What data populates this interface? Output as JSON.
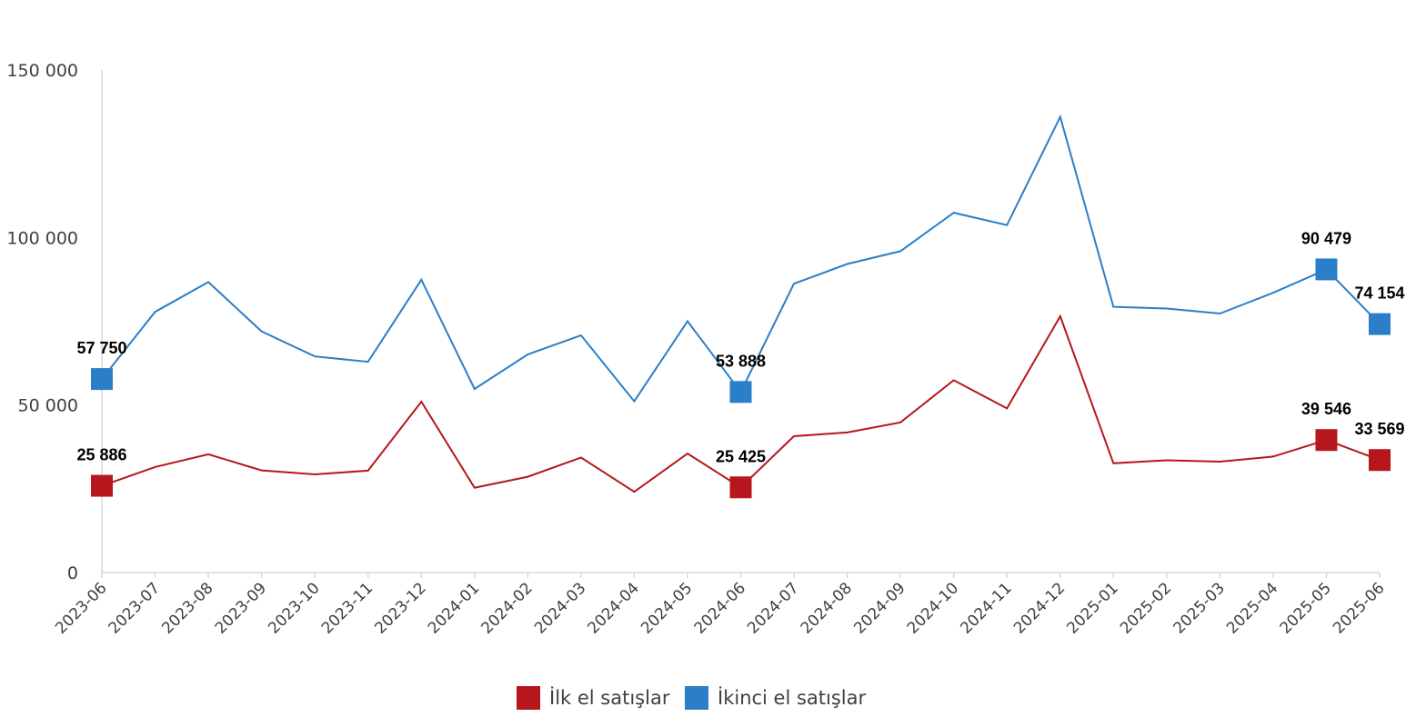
{
  "chart_data": {
    "type": "line",
    "title": "",
    "xlabel": "",
    "ylabel": "",
    "ylim": [
      0,
      150000
    ],
    "yticks": [
      0,
      50000,
      100000,
      150000
    ],
    "ytick_labels": [
      "0",
      "50 000",
      "100 000",
      "150 000"
    ],
    "grid": false,
    "legend_position": "bottom-center",
    "categories": [
      "2023-06",
      "2023-07",
      "2023-08",
      "2023-09",
      "2023-10",
      "2023-11",
      "2023-12",
      "2024-01",
      "2024-02",
      "2024-03",
      "2024-04",
      "2024-05",
      "2024-06",
      "2024-07",
      "2024-08",
      "2024-09",
      "2024-10",
      "2024-11",
      "2024-12",
      "2025-01",
      "2025-02",
      "2025-03",
      "2025-04",
      "2025-05",
      "2025-06"
    ],
    "series": [
      {
        "name": "İlk el satışlar",
        "color": "#B5171C",
        "values": [
          25886,
          31500,
          35300,
          30500,
          29300,
          30400,
          51000,
          25300,
          28600,
          34300,
          24100,
          35500,
          25425,
          40700,
          41800,
          44800,
          57400,
          49000,
          76500,
          32600,
          33500,
          33100,
          34600,
          39546,
          33569
        ],
        "labeled_points": [
          {
            "index": 0,
            "label": "25 886"
          },
          {
            "index": 12,
            "label": "25 425"
          },
          {
            "index": 23,
            "label": "39 546"
          },
          {
            "index": 24,
            "label": "33 569"
          }
        ]
      },
      {
        "name": "İkinci el satışlar",
        "color": "#2A7FC8",
        "values": [
          57750,
          77800,
          86700,
          72000,
          64500,
          62900,
          87400,
          54800,
          65100,
          70800,
          51100,
          75000,
          53888,
          86200,
          92100,
          95900,
          107400,
          103700,
          136000,
          79300,
          78800,
          77300,
          83500,
          90479,
          74154
        ],
        "labeled_points": [
          {
            "index": 0,
            "label": "57 750"
          },
          {
            "index": 12,
            "label": "53 888"
          },
          {
            "index": 23,
            "label": "90 479"
          },
          {
            "index": 24,
            "label": "74 154"
          }
        ]
      }
    ]
  }
}
